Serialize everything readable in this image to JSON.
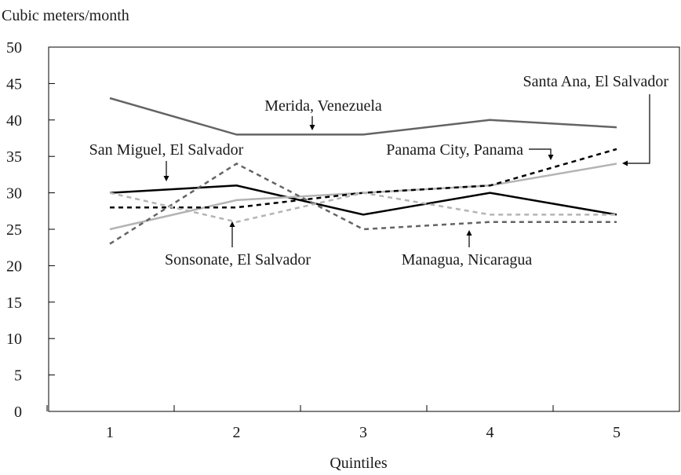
{
  "chart_data": {
    "type": "line",
    "ylabel": "Cubic meters/month",
    "xlabel": "Quintiles",
    "x": [
      1,
      2,
      3,
      4,
      5
    ],
    "ylim": [
      0,
      50
    ],
    "yticks": [
      0,
      5,
      10,
      15,
      20,
      25,
      30,
      35,
      40,
      45,
      50
    ],
    "grid": false,
    "series": [
      {
        "name": "Merida, Venezuela",
        "values": [
          43,
          38,
          38,
          40,
          39
        ],
        "color": "#646464",
        "style": "solid"
      },
      {
        "name": "San Miguel, El Salvador",
        "values": [
          30,
          31,
          27,
          30,
          27
        ],
        "color": "#000000",
        "style": "solid"
      },
      {
        "name": "Santa Ana, El Salvador",
        "values": [
          25,
          29,
          30,
          31,
          34
        ],
        "color": "#b4b4b4",
        "style": "solid"
      },
      {
        "name": "Panama City, Panama",
        "values": [
          28,
          28,
          30,
          31,
          36
        ],
        "color": "#000000",
        "style": "dashed"
      },
      {
        "name": "Managua, Nicaragua",
        "values": [
          23,
          34,
          25,
          26,
          26
        ],
        "color": "#646464",
        "style": "dashed"
      },
      {
        "name": "Sonsonate, El Salvador",
        "values": [
          30,
          26,
          30,
          27,
          27
        ],
        "color": "#b4b4b4",
        "style": "dashed"
      }
    ]
  }
}
